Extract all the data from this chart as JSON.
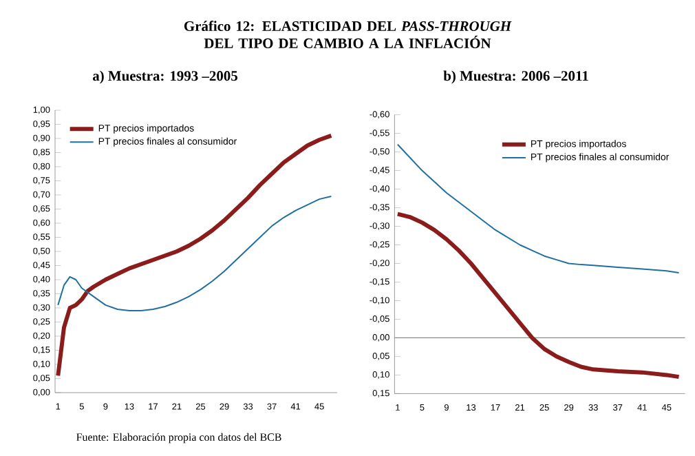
{
  "chart_data": [
    {
      "type": "line",
      "title": "Gráfico 12: ELASTICIDAD DEL *PASS-THROUGH* DEL TIPO DE CAMBIO A LA INFLACIÓN",
      "subtitle": "a) Muestra: 1993 –2005",
      "annotations": [
        "Fuente: Elaboración propia con datos del BCB"
      ],
      "xlim": [
        0.5,
        48
      ],
      "xticks": [
        1,
        5,
        9,
        13,
        17,
        21,
        25,
        29,
        33,
        37,
        41,
        45
      ],
      "ylim": [
        0,
        1
      ],
      "yticks": [
        {
          "value": 0,
          "label": "0,00"
        },
        {
          "value": 0.05,
          "label": "0,05"
        },
        {
          "value": 0.1,
          "label": "0,10"
        },
        {
          "value": 0.15,
          "label": "0,15"
        },
        {
          "value": 0.2,
          "label": "0,20"
        },
        {
          "value": 0.25,
          "label": "0,25"
        },
        {
          "value": 0.3,
          "label": "0,30"
        },
        {
          "value": 0.35,
          "label": "0,35"
        },
        {
          "value": 0.4,
          "label": "0,40"
        },
        {
          "value": 0.45,
          "label": "0,45"
        },
        {
          "value": 0.5,
          "label": "0,50"
        },
        {
          "value": 0.55,
          "label": "0,55"
        },
        {
          "value": 0.6,
          "label": "0,60"
        },
        {
          "value": 0.65,
          "label": "0,65"
        },
        {
          "value": 0.7,
          "label": "0,70"
        },
        {
          "value": 0.75,
          "label": "0,75"
        },
        {
          "value": 0.8,
          "label": "0,80"
        },
        {
          "value": 0.85,
          "label": "0,85"
        },
        {
          "value": 0.9,
          "label": "0,90"
        },
        {
          "value": 0.95,
          "label": "0,95"
        },
        {
          "value": 1,
          "label": "1,00"
        }
      ],
      "legend": "top left",
      "grid": false,
      "series": [
        {
          "name": "PT precios importados",
          "color": "#8b1c1c",
          "x": [
            1,
            2,
            3,
            4,
            5,
            6,
            7,
            9,
            11,
            13,
            15,
            17,
            19,
            21,
            23,
            25,
            27,
            29,
            31,
            33,
            35,
            37,
            39,
            41,
            43,
            45,
            47
          ],
          "values": [
            0.06,
            0.23,
            0.3,
            0.31,
            0.33,
            0.36,
            0.375,
            0.4,
            0.42,
            0.44,
            0.455,
            0.47,
            0.485,
            0.5,
            0.52,
            0.545,
            0.575,
            0.61,
            0.65,
            0.69,
            0.735,
            0.775,
            0.815,
            0.845,
            0.875,
            0.895,
            0.91
          ]
        },
        {
          "name": "PT precios finales al consumidor",
          "color": "#1f6fa0",
          "x": [
            1,
            2,
            3,
            4,
            5,
            7,
            9,
            11,
            13,
            15,
            17,
            19,
            21,
            23,
            25,
            27,
            29,
            31,
            33,
            35,
            37,
            39,
            41,
            43,
            45,
            47
          ],
          "values": [
            0.31,
            0.38,
            0.41,
            0.4,
            0.37,
            0.34,
            0.31,
            0.295,
            0.29,
            0.29,
            0.295,
            0.305,
            0.32,
            0.34,
            0.365,
            0.395,
            0.43,
            0.47,
            0.51,
            0.55,
            0.59,
            0.62,
            0.645,
            0.665,
            0.685,
            0.695
          ]
        }
      ]
    },
    {
      "type": "line",
      "subtitle": "b) Muestra: 2006 –2011",
      "xlim": [
        0.5,
        48
      ],
      "xticks": [
        1,
        5,
        9,
        13,
        17,
        21,
        25,
        29,
        33,
        37,
        41,
        45
      ],
      "ylim": [
        0.15,
        -0.6
      ],
      "yticks": [
        {
          "value": -0.6,
          "label": "-0,60"
        },
        {
          "value": -0.55,
          "label": "-0,55"
        },
        {
          "value": -0.5,
          "label": "-0,50"
        },
        {
          "value": -0.45,
          "label": "-0,45"
        },
        {
          "value": -0.4,
          "label": "-0,40"
        },
        {
          "value": -0.35,
          "label": "-0,35"
        },
        {
          "value": -0.3,
          "label": "-0,30"
        },
        {
          "value": -0.25,
          "label": "-0,25"
        },
        {
          "value": -0.2,
          "label": "-0,20"
        },
        {
          "value": -0.15,
          "label": "-0,15"
        },
        {
          "value": -0.1,
          "label": "-0,10"
        },
        {
          "value": -0.05,
          "label": "-0,05"
        },
        {
          "value": 0,
          "label": "0,00"
        },
        {
          "value": 0.05,
          "label": "0,05"
        },
        {
          "value": 0.1,
          "label": "0,10"
        },
        {
          "value": 0.15,
          "label": "0,15"
        }
      ],
      "legend": "top right",
      "grid": false,
      "ref_lines": [
        {
          "axis": "y",
          "value": 0,
          "color": "#8c8c8c"
        }
      ],
      "series": [
        {
          "name": "PT precios importados",
          "color": "#8b1c1c",
          "x": [
            1,
            3,
            5,
            7,
            9,
            11,
            13,
            15,
            17,
            19,
            21,
            23,
            25,
            27,
            29,
            31,
            33,
            37,
            41,
            45,
            47
          ],
          "values": [
            -0.333,
            -0.325,
            -0.31,
            -0.29,
            -0.265,
            -0.235,
            -0.2,
            -0.16,
            -0.12,
            -0.08,
            -0.04,
            0,
            0.03,
            0.05,
            0.065,
            0.078,
            0.085,
            0.09,
            0.093,
            0.1,
            0.105
          ]
        },
        {
          "name": "PT precios finales al consumidor",
          "color": "#1f6fa0",
          "x": [
            1,
            3,
            5,
            7,
            9,
            11,
            13,
            15,
            17,
            19,
            21,
            23,
            25,
            27,
            29,
            31,
            33,
            37,
            41,
            45,
            47
          ],
          "values": [
            -0.52,
            -0.485,
            -0.45,
            -0.42,
            -0.39,
            -0.365,
            -0.34,
            -0.315,
            -0.29,
            -0.27,
            -0.25,
            -0.235,
            -0.22,
            -0.21,
            -0.2,
            -0.197,
            -0.195,
            -0.19,
            -0.185,
            -0.18,
            -0.175
          ]
        }
      ]
    }
  ]
}
